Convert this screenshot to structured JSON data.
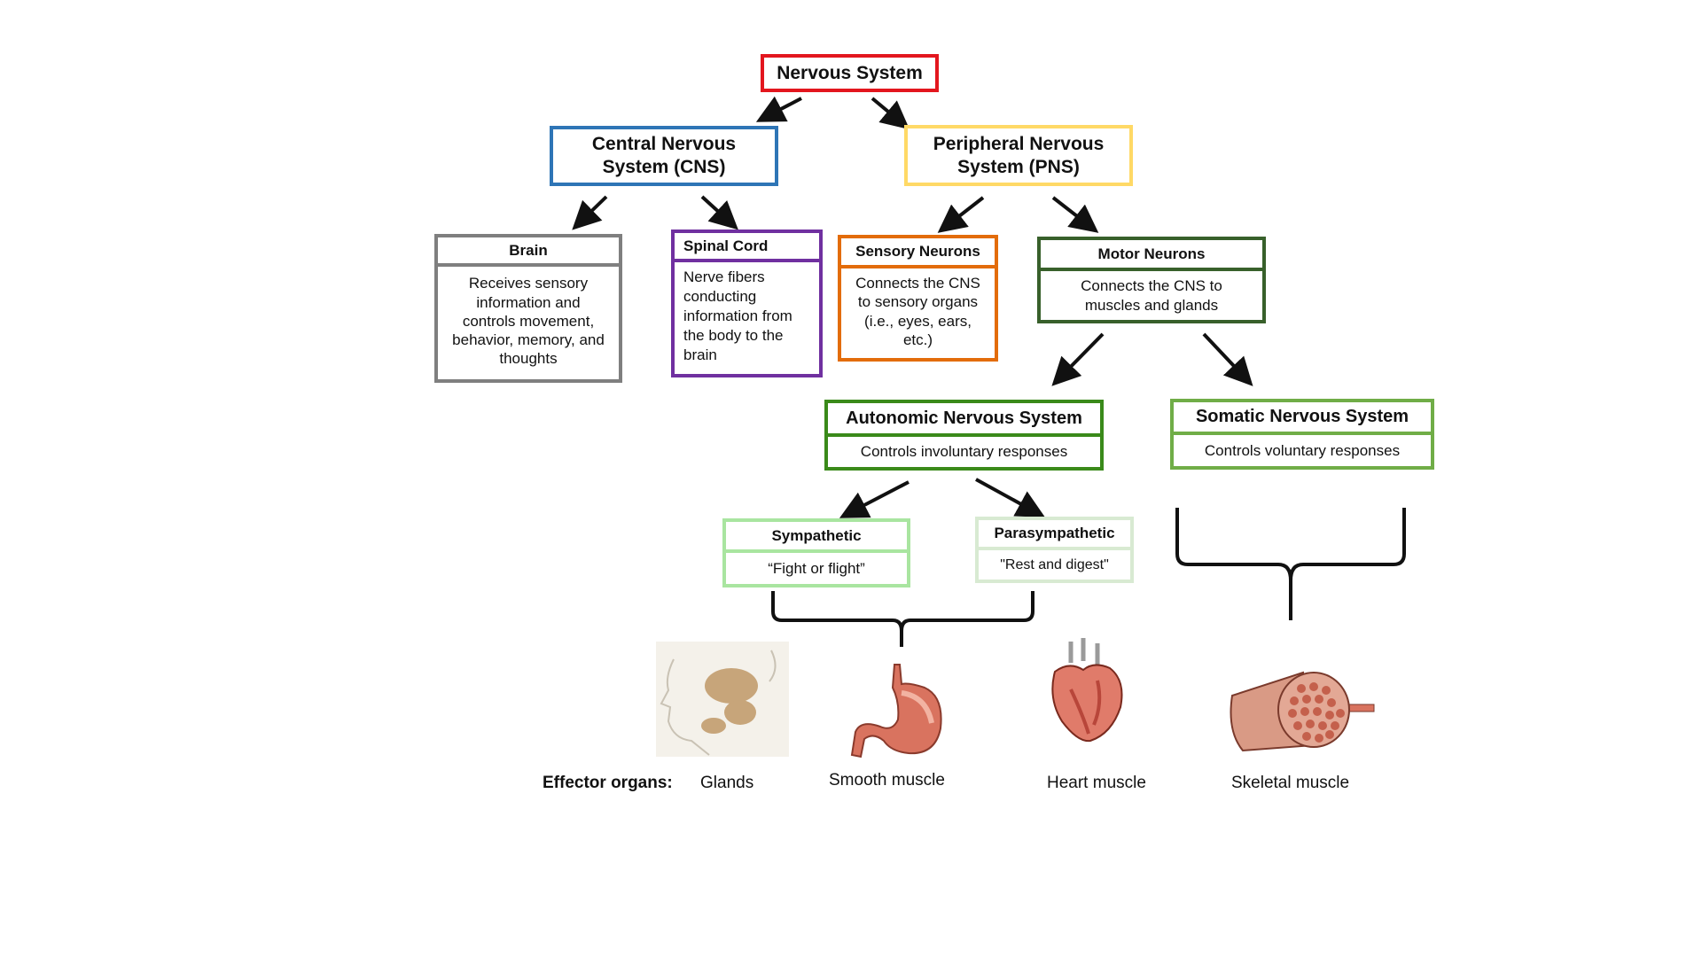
{
  "nodes": {
    "nervous_system": {
      "title": "Nervous System",
      "color": "#e3161e"
    },
    "cns": {
      "title": "Central Nervous System (CNS)",
      "color": "#2e75b6"
    },
    "pns": {
      "title": "Peripheral Nervous System (PNS)",
      "color": "#ffd966"
    },
    "brain": {
      "title": "Brain",
      "text": "Receives sensory information and controls movement, behavior, memory, and thoughts",
      "color": "#7f7f7f"
    },
    "spinal_cord": {
      "title": "Spinal Cord",
      "text": "Nerve fibers conducting information from the body  to the brain",
      "color": "#7030a0"
    },
    "sensory_neurons": {
      "title": "Sensory Neurons",
      "text": "Connects the CNS to sensory organs (i.e., eyes, ears, etc.)",
      "color": "#e36c0a"
    },
    "motor_neurons": {
      "title": "Motor Neurons",
      "text": "Connects the CNS to muscles and glands",
      "color": "#38602b"
    },
    "autonomic": {
      "title": "Autonomic Nervous System",
      "text": "Controls involuntary responses",
      "color": "#3a8a1a"
    },
    "somatic": {
      "title": "Somatic Nervous System",
      "text": "Controls voluntary responses",
      "color": "#70ad47"
    },
    "sympathetic": {
      "title": "Sympathetic",
      "text": "“Fight or flight”",
      "color": "#a9e5a0"
    },
    "parasympathetic": {
      "title": "Parasympathetic",
      "text": "\"Rest and digest\"",
      "color": "#d8ead2"
    }
  },
  "effectors": {
    "label": "Effector organs:",
    "glands": "Glands",
    "smooth_muscle": "Smooth muscle",
    "heart_muscle": "Heart muscle",
    "skeletal_muscle": "Skeletal muscle"
  },
  "icons": [
    "glands-illustration",
    "stomach-illustration",
    "heart-illustration",
    "skeletal-muscle-illustration"
  ]
}
